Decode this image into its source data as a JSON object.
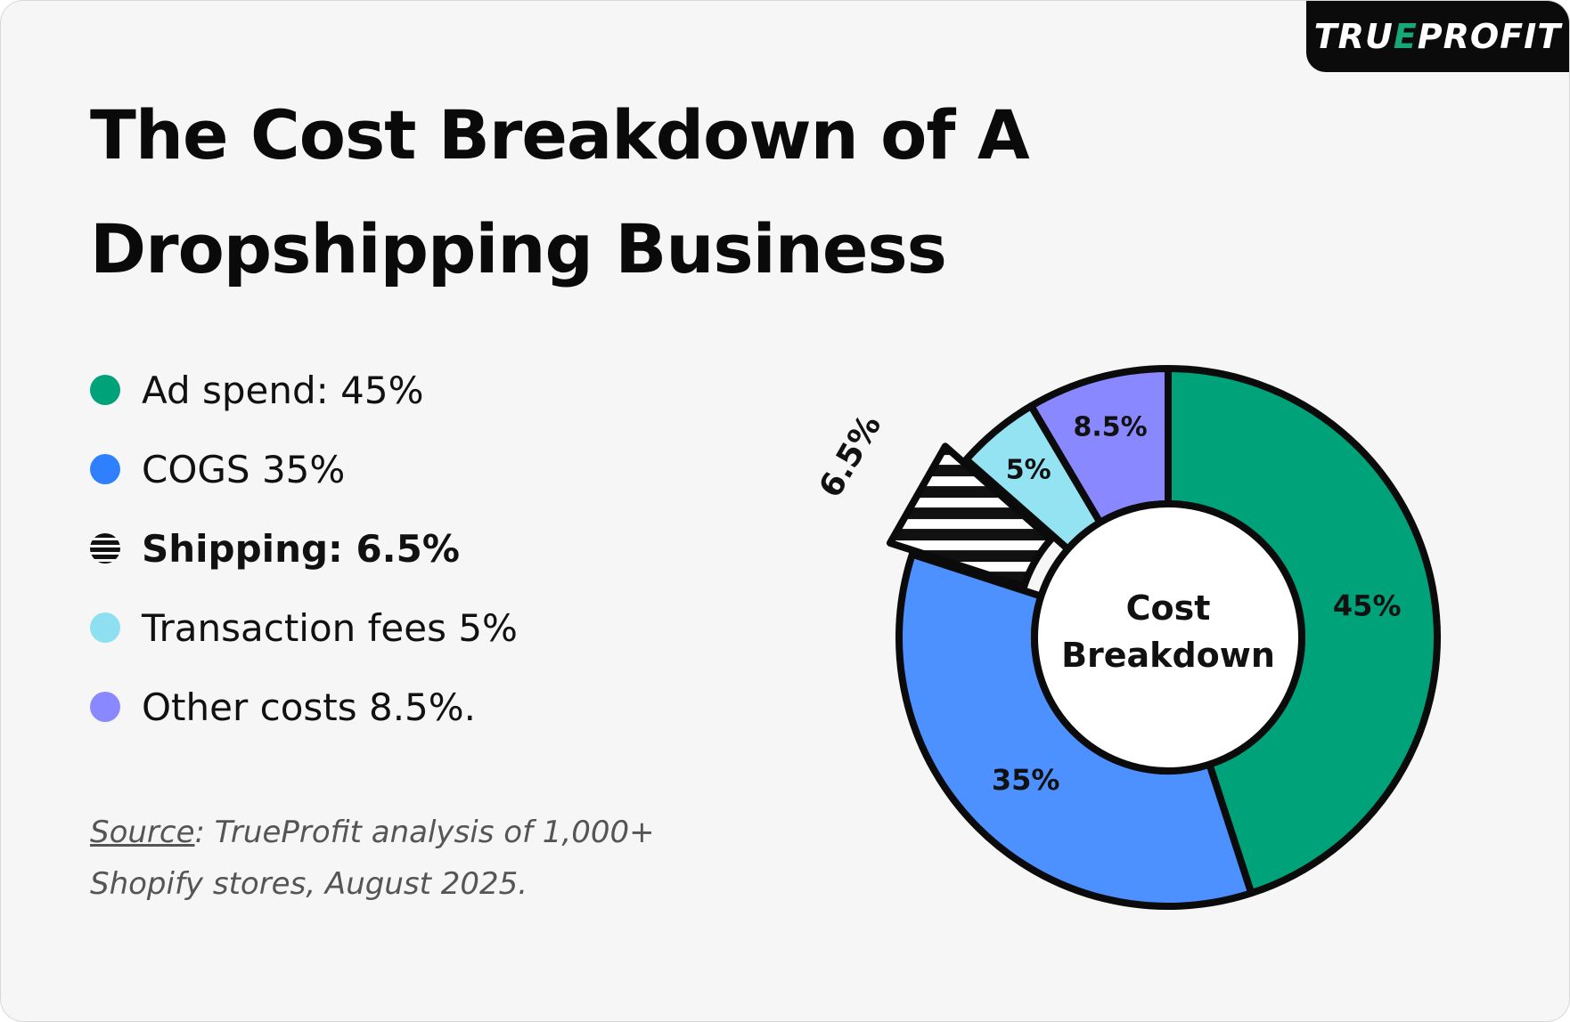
{
  "logo": {
    "text_before": "TRU",
    "text_accent": "E",
    "text_after": "PROFIT"
  },
  "title": {
    "line1": "The Cost Breakdown of A",
    "line2": "Dropshipping Business"
  },
  "legend": {
    "items": [
      {
        "label": "Ad spend: 45%",
        "color": "#00a27a",
        "bold": false,
        "striped": false
      },
      {
        "label": "COGS 35%",
        "color": "#2f80ff",
        "bold": false,
        "striped": false
      },
      {
        "label": "Shipping: 6.5%",
        "color": "#111111",
        "bold": true,
        "striped": true
      },
      {
        "label": "Transaction fees 5%",
        "color": "#8ee0f0",
        "bold": false,
        "striped": false
      },
      {
        "label": "Other costs 8.5%.",
        "color": "#8a88ff",
        "bold": false,
        "striped": false
      }
    ]
  },
  "source": {
    "key": "Source",
    "text": ": TrueProfit analysis of 1,000+ Shopify stores, August 2025."
  },
  "chart_data": {
    "type": "pie",
    "variant": "donut",
    "center_label": [
      "Cost",
      "Breakdown"
    ],
    "categories": [
      "Ad spend",
      "COGS",
      "Shipping",
      "Transaction fees",
      "Other costs"
    ],
    "values": [
      45,
      35,
      6.5,
      5,
      8.5
    ],
    "data_labels": [
      "45%",
      "35%",
      "6.5%",
      "5%",
      "8.5%"
    ],
    "colors": [
      "#00a27a",
      "#4d90ff",
      "striped",
      "#93e3f2",
      "#8a88ff"
    ],
    "exploded": "Shipping"
  }
}
